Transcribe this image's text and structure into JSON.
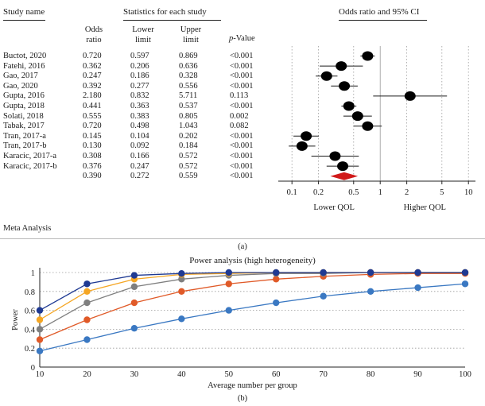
{
  "headers": {
    "study_name": "Study name",
    "statistics": "Statistics for each study",
    "or_ci": "Odds ratio and 95% CI",
    "odds_ratio": [
      "Odds",
      "ratio"
    ],
    "lower_limit": [
      "Lower",
      "limit"
    ],
    "upper_limit": [
      "Upper",
      "limit"
    ],
    "p_value_italic": "p",
    "p_value_rest": "-Value"
  },
  "studies": [
    {
      "name": "Buctot, 2020",
      "or": "0.720",
      "lower": "0.597",
      "upper": "0.869",
      "p": "<0.001"
    },
    {
      "name": "Fatehi, 2016",
      "or": "0.362",
      "lower": "0.206",
      "upper": "0.636",
      "p": "<0.001"
    },
    {
      "name": "Gao, 2017",
      "or": "0.247",
      "lower": "0.186",
      "upper": "0.328",
      "p": "<0.001"
    },
    {
      "name": "Gao, 2020",
      "or": "0.392",
      "lower": "0.277",
      "upper": "0.556",
      "p": "<0.001"
    },
    {
      "name": "Gupta, 2016",
      "or": "2.180",
      "lower": "0.832",
      "upper": "5.711",
      "p": "0.113"
    },
    {
      "name": "Gupta, 2018",
      "or": "0.441",
      "lower": "0.363",
      "upper": "0.537",
      "p": "<0.001"
    },
    {
      "name": "Solati, 2018",
      "or": "0.555",
      "lower": "0.383",
      "upper": "0.805",
      "p": "0.002"
    },
    {
      "name": "Tabak, 2017",
      "or": "0.720",
      "lower": "0.498",
      "upper": "1.043",
      "p": "0.082"
    },
    {
      "name": "Tran, 2017-a",
      "or": "0.145",
      "lower": "0.104",
      "upper": "0.202",
      "p": "<0.001"
    },
    {
      "name": "Tran, 2017-b",
      "or": "0.130",
      "lower": "0.092",
      "upper": "0.184",
      "p": "<0.001"
    },
    {
      "name": "Karacic, 2017-a",
      "or": "0.308",
      "lower": "0.166",
      "upper": "0.572",
      "p": "<0.001"
    },
    {
      "name": "Karacic, 2017-b",
      "or": "0.376",
      "lower": "0.247",
      "upper": "0.572",
      "p": "<0.001"
    }
  ],
  "summary": {
    "or": "0.390",
    "lower": "0.272",
    "upper": "0.559",
    "p": "<0.001"
  },
  "panel_a_caption": "(a)",
  "panel_b_caption": "(b)",
  "meta_analysis_label": "Meta Analysis",
  "colors": {
    "summary_diamond": "#d11a1a",
    "study_marker": "#000000",
    "s1": "#1f3a93",
    "s2": "#f5a623",
    "s3": "#7f7f7f",
    "s4": "#e05a28",
    "s5": "#3a78c2"
  },
  "chart_data": [
    {
      "type": "scatter",
      "subtype": "forest",
      "title": "Odds ratio and 95% CI",
      "xscale": "log",
      "xlim": [
        0.07,
        12
      ],
      "xticks": [
        0.1,
        0.2,
        0.5,
        1,
        2,
        5,
        10
      ],
      "xtick_labels": [
        "0.1",
        "0.2",
        "0.5",
        "1",
        "2",
        "5",
        "10"
      ],
      "xlabel_left": "Lower QOL",
      "xlabel_right": "Higher QOL",
      "categories": [
        "Buctot, 2020",
        "Fatehi, 2016",
        "Gao, 2017",
        "Gao, 2020",
        "Gupta, 2016",
        "Gupta, 2018",
        "Solati, 2018",
        "Tabak, 2017",
        "Tran, 2017-a",
        "Tran, 2017-b",
        "Karacic, 2017-a",
        "Karacic, 2017-b"
      ],
      "or": [
        0.72,
        0.362,
        0.247,
        0.392,
        2.18,
        0.441,
        0.555,
        0.72,
        0.145,
        0.13,
        0.308,
        0.376
      ],
      "lower": [
        0.597,
        0.206,
        0.186,
        0.277,
        0.832,
        0.363,
        0.383,
        0.498,
        0.104,
        0.092,
        0.166,
        0.247
      ],
      "upper": [
        0.869,
        0.636,
        0.328,
        0.556,
        5.711,
        0.537,
        0.805,
        1.043,
        0.202,
        0.184,
        0.572,
        0.572
      ],
      "summary": {
        "or": 0.39,
        "lower": 0.272,
        "upper": 0.559
      }
    },
    {
      "type": "line",
      "title": "Power analysis (high heterogeneity)",
      "xlabel": "Average number per group",
      "ylabel": "Power",
      "xlim": [
        10,
        100
      ],
      "ylim": [
        0,
        1
      ],
      "x": [
        10,
        20,
        30,
        40,
        50,
        60,
        70,
        80,
        90,
        100
      ],
      "xtick_labels": [
        "10",
        "20",
        "30",
        "40",
        "50",
        "60",
        "70",
        "80",
        "90",
        "100"
      ],
      "yticks": [
        0,
        0.2,
        0.4,
        0.6,
        0.8,
        1
      ],
      "ytick_labels": [
        "0",
        "0.2",
        "0.4",
        "0.6",
        "0.8",
        "1"
      ],
      "series": [
        {
          "name": "series-1",
          "values": [
            0.6,
            0.88,
            0.97,
            0.99,
            1.0,
            1.0,
            1.0,
            1.0,
            1.0,
            1.0
          ]
        },
        {
          "name": "series-2",
          "values": [
            0.5,
            0.8,
            0.93,
            0.98,
            0.99,
            1.0,
            1.0,
            1.0,
            1.0,
            1.0
          ]
        },
        {
          "name": "series-3",
          "values": [
            0.4,
            0.68,
            0.85,
            0.93,
            0.97,
            0.99,
            0.99,
            1.0,
            1.0,
            1.0
          ]
        },
        {
          "name": "series-4",
          "values": [
            0.29,
            0.5,
            0.68,
            0.8,
            0.88,
            0.93,
            0.96,
            0.98,
            0.99,
            0.99
          ]
        },
        {
          "name": "series-5",
          "values": [
            0.17,
            0.29,
            0.41,
            0.51,
            0.6,
            0.68,
            0.75,
            0.8,
            0.84,
            0.88
          ]
        }
      ]
    }
  ]
}
